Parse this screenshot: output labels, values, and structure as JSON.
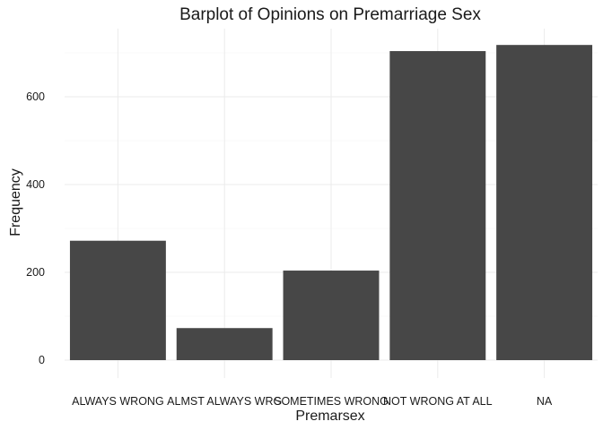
{
  "chart_data": {
    "type": "bar",
    "title": "Barplot of Opinions on Premarriage Sex",
    "xlabel": "Premarsex",
    "ylabel": "Frequency",
    "categories": [
      "ALWAYS WRONG",
      "ALMST ALWAYS WRG",
      "SOMETIMES WRONG",
      "NOT WRONG AT ALL",
      "NA"
    ],
    "values": [
      272,
      73,
      204,
      704,
      718
    ],
    "yticks": [
      0,
      200,
      400,
      600
    ],
    "ylim": [
      0,
      718
    ],
    "grid": true,
    "bar_color": "#474747",
    "grid_color": "#ebebeb"
  }
}
